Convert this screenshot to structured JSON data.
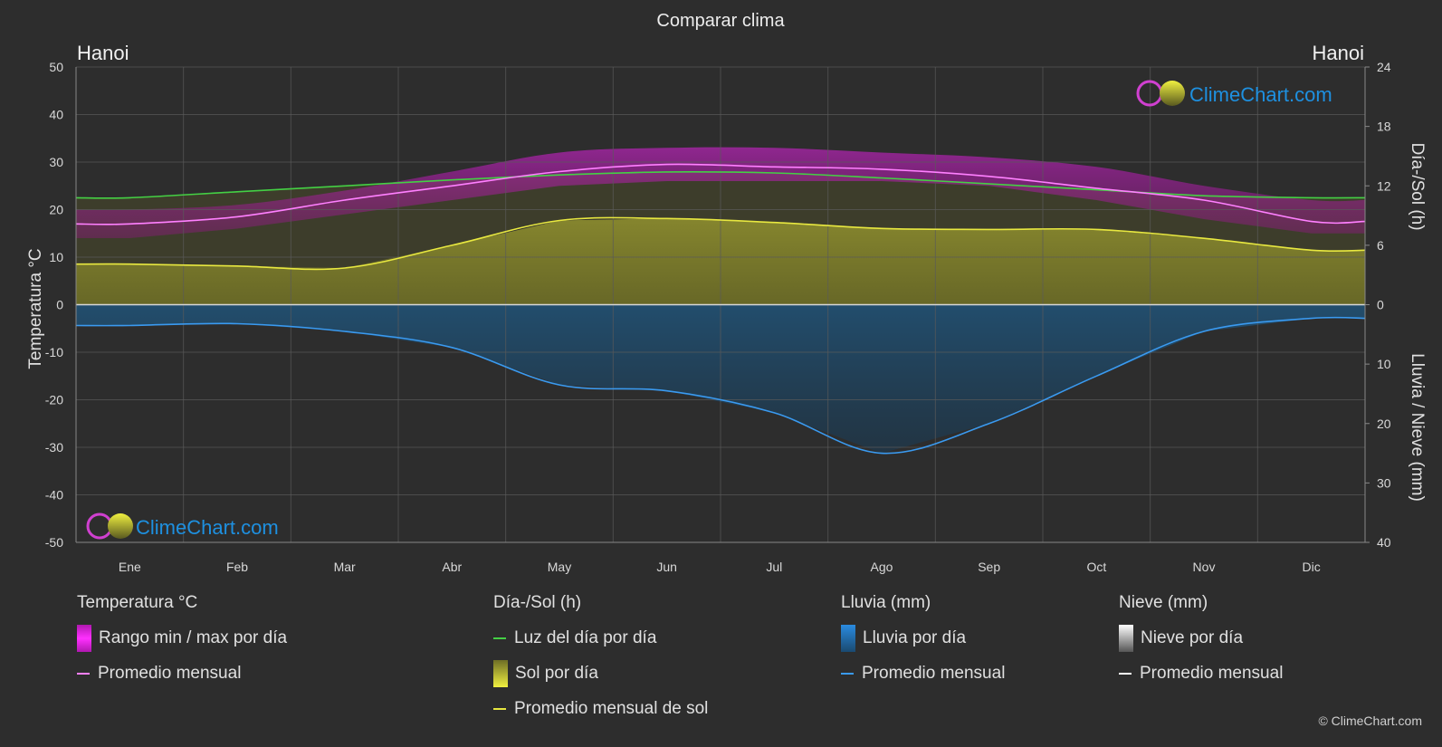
{
  "chart_data": {
    "type": "area",
    "title": "Comparar clima",
    "city_left": "Hanoi",
    "city_right": "Hanoi",
    "y_left_label": "Temperatura °C",
    "y_right_label_top": "Día-/Sol (h)",
    "y_right_label_bottom": "Lluvia / Nieve (mm)",
    "y_left_range": [
      -50,
      50
    ],
    "y_left_ticks": [
      50,
      40,
      30,
      20,
      10,
      0,
      -10,
      -20,
      -30,
      -40,
      -50
    ],
    "y_right_top_range": [
      0,
      24
    ],
    "y_right_top_ticks": [
      24,
      18,
      12,
      6,
      0
    ],
    "y_right_bottom_range": [
      0,
      40
    ],
    "y_right_bottom_ticks": [
      10,
      20,
      30,
      40
    ],
    "categories": [
      "Ene",
      "Feb",
      "Mar",
      "Abr",
      "May",
      "Jun",
      "Jul",
      "Ago",
      "Sep",
      "Oct",
      "Nov",
      "Dic"
    ],
    "grid": true,
    "series": [
      {
        "key": "temp_max",
        "values": [
          20,
          21,
          24,
          28,
          32,
          33,
          33,
          32,
          31,
          29,
          25,
          22
        ]
      },
      {
        "key": "temp_min",
        "values": [
          14,
          16,
          19,
          22,
          25,
          26,
          26,
          26,
          25,
          22,
          18,
          15
        ]
      },
      {
        "key": "temp_avg",
        "values": [
          17,
          18.5,
          22,
          25,
          28,
          29.5,
          29,
          28.5,
          27,
          24.5,
          22,
          17.5
        ]
      },
      {
        "key": "daylight",
        "values": [
          10.8,
          11.4,
          12,
          12.6,
          13.1,
          13.4,
          13.3,
          12.8,
          12.2,
          11.6,
          11,
          10.8
        ]
      },
      {
        "key": "sunshine",
        "values": [
          4.1,
          3.9,
          3.7,
          6,
          8.5,
          8.7,
          8.3,
          7.7,
          7.6,
          7.6,
          6.7,
          5.5
        ]
      },
      {
        "key": "rain",
        "values": [
          3.5,
          3.2,
          4.5,
          7.2,
          13.5,
          14.5,
          18.2,
          25,
          20,
          12,
          4.5,
          2.3
        ]
      }
    ],
    "legend": {
      "groups": [
        {
          "title": "Temperatura °C",
          "items": [
            {
              "label": "Rango min / max por día",
              "swatch": "box",
              "color": "#e020e0"
            },
            {
              "label": "Promedio mensual",
              "swatch": "line",
              "color": "#ff80ff"
            }
          ]
        },
        {
          "title": "Día-/Sol (h)",
          "items": [
            {
              "label": "Luz del día por día",
              "swatch": "line",
              "color": "#44d044"
            },
            {
              "label": "Sol por día",
              "swatch": "box",
              "color": "#d6d640"
            },
            {
              "label": "Promedio mensual de sol",
              "swatch": "line",
              "color": "#e8e840"
            }
          ]
        },
        {
          "title": "Lluvia (mm)",
          "items": [
            {
              "label": "Lluvia por día",
              "swatch": "box",
              "color": "#2a8be0"
            },
            {
              "label": "Promedio mensual",
              "swatch": "line",
              "color": "#3a9af0"
            }
          ]
        },
        {
          "title": "Nieve (mm)",
          "items": [
            {
              "label": "Nieve por día",
              "swatch": "box",
              "color": "#cccccc"
            },
            {
              "label": "Promedio mensual",
              "swatch": "line",
              "color": "#ffffff"
            }
          ]
        }
      ]
    }
  },
  "branding": {
    "logo_text": "ClimeChart.com",
    "copyright": "© ClimeChart.com"
  },
  "colors": {
    "background": "#2d2d2d",
    "grid": "#5a5a5a",
    "temp_range": "#d020c8",
    "temp_avg": "#ff80ff",
    "daylight": "#44d044",
    "sunshine_fill": "#8c8c30",
    "sunshine_avg": "#e8e840",
    "rain_fill": "#1f5f8c",
    "rain_avg": "#3a9af0",
    "logo_text": "#1e90e0"
  }
}
